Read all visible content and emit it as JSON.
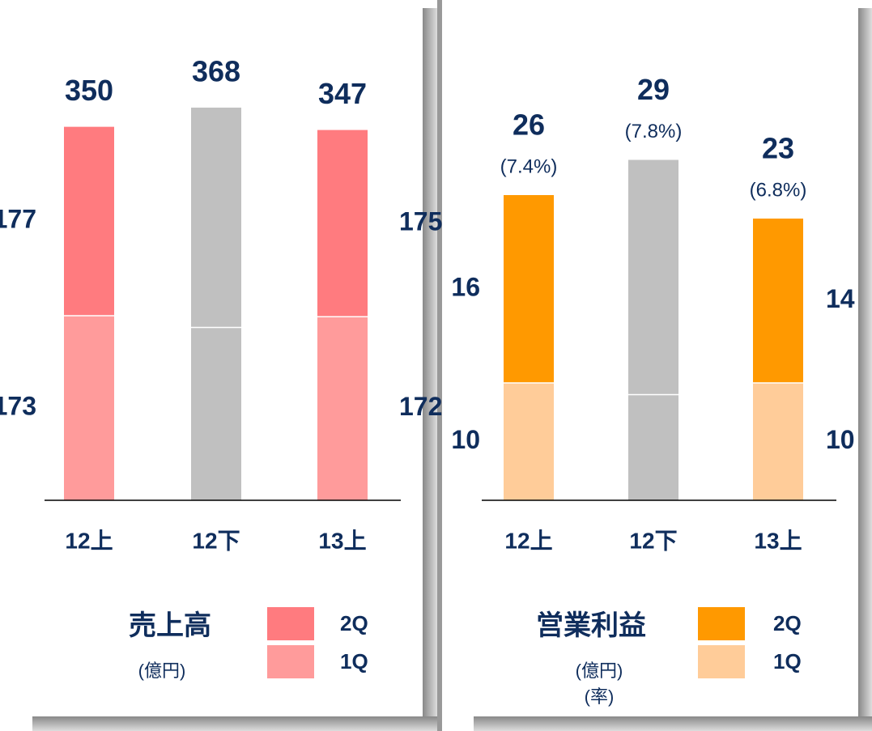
{
  "chart_data": [
    {
      "type": "stacked_bar",
      "title": "売上高",
      "unit_lines": [
        "(億円)"
      ],
      "categories": [
        "12上",
        "12下",
        "13上"
      ],
      "series": [
        {
          "name": "2Q",
          "color": "#ff7b7f",
          "values": [
            177,
            206,
            175
          ],
          "value_labels": [
            "177",
            null,
            "175"
          ]
        },
        {
          "name": "1Q",
          "color": "#ff9b9b",
          "values": [
            173,
            162,
            172
          ],
          "value_labels": [
            "173",
            null,
            "172"
          ]
        }
      ],
      "totals": [
        350,
        368,
        347
      ],
      "muted": [
        false,
        true,
        false
      ],
      "muted_color": "#c0c0c0",
      "ylim": [
        0,
        440
      ]
    },
    {
      "type": "stacked_bar",
      "title": "営業利益",
      "unit_lines": [
        "(億円)",
        "(率)"
      ],
      "categories": [
        "12上",
        "12下",
        "13上"
      ],
      "series": [
        {
          "name": "2Q",
          "color": "#ff9900",
          "values": [
            16,
            20,
            14
          ],
          "value_labels": [
            "16",
            null,
            "14"
          ]
        },
        {
          "name": "1Q",
          "color": "#ffcc99",
          "values": [
            10,
            9,
            10
          ],
          "value_labels": [
            "10",
            null,
            "10"
          ]
        }
      ],
      "totals": [
        26,
        29,
        23
      ],
      "rate_labels": [
        "(7.4%)",
        "(7.8%)",
        "(6.8%)"
      ],
      "muted": [
        false,
        true,
        false
      ],
      "muted_color": "#c0c0c0",
      "ylim": [
        0,
        40
      ]
    }
  ]
}
